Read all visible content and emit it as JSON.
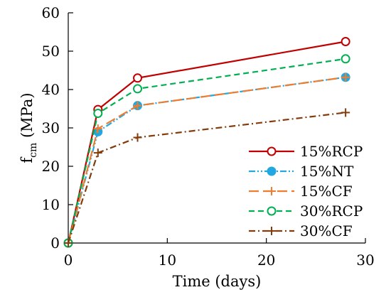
{
  "chart_data": {
    "type": "line",
    "xlabel": "Time (days)",
    "ylabel_main": "f",
    "ylabel_sub": "cm",
    "ylabel_unit": " (MPa)",
    "xlim": [
      0,
      30
    ],
    "ylim": [
      0,
      60
    ],
    "xticks": [
      0,
      10,
      20,
      30
    ],
    "yticks": [
      0,
      10,
      20,
      30,
      40,
      50,
      60
    ],
    "grid": false,
    "legend_position": "bottom-right",
    "series": [
      {
        "name": "15%RCP",
        "color": "#c00000",
        "dash": "solid",
        "marker": "open-circle",
        "x": [
          0,
          3,
          7,
          28
        ],
        "y": [
          0,
          34.8,
          43.0,
          52.5
        ]
      },
      {
        "name": "15%NT",
        "color": "#22a7e0",
        "dash": "dash-dot-dot",
        "marker": "filled-circle",
        "x": [
          0,
          3,
          7,
          28
        ],
        "y": [
          0,
          29.0,
          35.8,
          43.2
        ]
      },
      {
        "name": "15%CF",
        "color": "#ed7d31",
        "dash": "long-dash",
        "marker": "plus",
        "x": [
          0,
          3,
          7,
          28
        ],
        "y": [
          0,
          29.8,
          35.8,
          43.2
        ]
      },
      {
        "name": "30%RCP",
        "color": "#00b050",
        "dash": "dash",
        "marker": "open-circle",
        "x": [
          0,
          3,
          7,
          28
        ],
        "y": [
          0,
          33.8,
          40.2,
          48.0
        ]
      },
      {
        "name": "30%CF",
        "color": "#843c0c",
        "dash": "dash-dot",
        "marker": "plus",
        "x": [
          0,
          3,
          7,
          28
        ],
        "y": [
          0,
          23.5,
          27.5,
          34.0
        ]
      }
    ]
  }
}
